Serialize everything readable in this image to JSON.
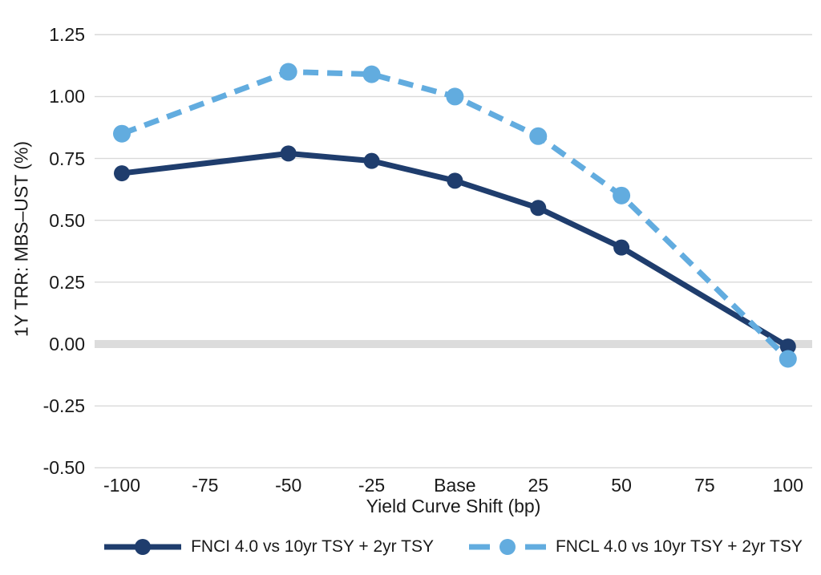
{
  "chart_data": {
    "type": "line",
    "title": "",
    "xlabel": "Yield Curve Shift (bp)",
    "ylabel": "1Y TRR: MBS–UST (%)",
    "x_tick_labels": [
      "-100",
      "-75",
      "-50",
      "-25",
      "Base",
      "25",
      "50",
      "75",
      "100"
    ],
    "y_tick_labels": [
      "1.25",
      "1.00",
      "0.75",
      "0.50",
      "0.25",
      "0.00",
      "-0.25",
      "-0.50"
    ],
    "ylim": [
      -0.5,
      1.25
    ],
    "grid": "horizontal-only",
    "gridline_color": "#d9d9d9",
    "zero_line": {
      "highlighted": true,
      "color": "#dcdcdc"
    },
    "legend_position": "bottom-center",
    "text_color": "#1a1a1a",
    "background_color": "#ffffff",
    "series": [
      {
        "name": "FNCI 4.0 vs 10yr TSY + 2yr TSY",
        "color": "#1f3d6d",
        "line_style": "solid",
        "marker": "circle",
        "x": [
          "-100",
          "-50",
          "-25",
          "Base",
          "25",
          "50",
          "100"
        ],
        "values": [
          0.69,
          0.77,
          0.74,
          0.66,
          0.55,
          0.39,
          -0.01
        ]
      },
      {
        "name": "FNCL 4.0 vs 10yr TSY + 2yr TSY",
        "color": "#62acdf",
        "line_style": "dashed",
        "marker": "circle",
        "x": [
          "-100",
          "-50",
          "-25",
          "Base",
          "25",
          "50",
          "100"
        ],
        "values": [
          0.85,
          1.1,
          1.09,
          1.0,
          0.84,
          0.6,
          -0.06
        ]
      }
    ]
  }
}
